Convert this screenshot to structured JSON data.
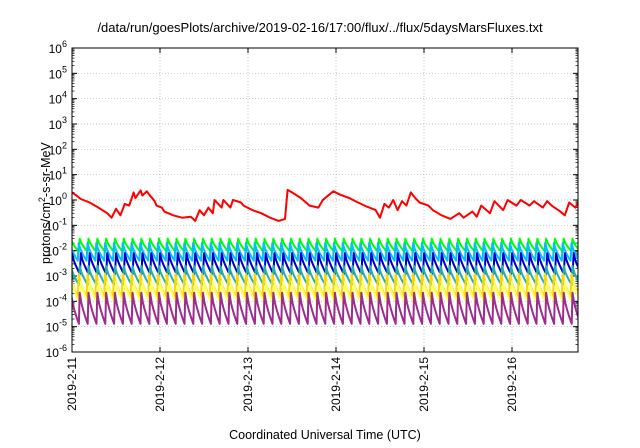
{
  "chart_data": {
    "type": "line",
    "title": "/data/run/goesPlots/archive/2019-02-16/17:00/flux/../flux/5daysMarsFluxes.txt",
    "xlabel": "Coordinated Universal Time (UTC)",
    "ylabel_main": "protons/cm",
    "ylabel_sup": "2",
    "ylabel_rest": "-s-sr-MeV",
    "yscale": "log",
    "ylim": [
      1e-06,
      1000000.0
    ],
    "grid": true,
    "x_ticks": [
      "2019-2-11",
      "2019-2-12",
      "2019-2-13",
      "2019-2-14",
      "2019-2-15",
      "2019-2-16"
    ],
    "y_ticks": [
      -6,
      -5,
      -4,
      -3,
      -2,
      -1,
      0,
      1,
      2,
      3,
      4,
      5,
      6
    ],
    "xlim_days": [
      0,
      5.75
    ],
    "series": [
      {
        "color": "#ff0000",
        "x_days": [
          0,
          0.05,
          0.1,
          0.2,
          0.3,
          0.4,
          0.45,
          0.5,
          0.55,
          0.6,
          0.65,
          0.7,
          0.72,
          0.78,
          0.8,
          0.85,
          0.88,
          0.94,
          0.96,
          1.02,
          1.05,
          1.15,
          1.25,
          1.35,
          1.4,
          1.45,
          1.5,
          1.55,
          1.6,
          1.62,
          1.7,
          1.72,
          1.8,
          1.83,
          1.92,
          1.95,
          2.05,
          2.15,
          2.25,
          2.35,
          2.42,
          2.45,
          2.5,
          2.6,
          2.7,
          2.8,
          2.85,
          2.92,
          2.97,
          3.05,
          3.15,
          3.25,
          3.35,
          3.45,
          3.5,
          3.55,
          3.6,
          3.65,
          3.7,
          3.75,
          3.8,
          3.85,
          3.9,
          3.95,
          4.05,
          4.1,
          4.2,
          4.3,
          4.4,
          4.45,
          4.55,
          4.6,
          4.65,
          4.75,
          4.8,
          4.9,
          4.95,
          5.05,
          5.1,
          5.2,
          5.25,
          5.35,
          5.4,
          5.45,
          5.55,
          5.6,
          5.65,
          5.72,
          5.75
        ],
        "values": [
          2.0,
          1.5,
          1.1,
          0.8,
          0.5,
          0.3,
          0.2,
          0.45,
          0.25,
          0.7,
          0.6,
          2.0,
          1.2,
          2.4,
          1.5,
          2.2,
          1.6,
          0.9,
          0.6,
          0.5,
          0.35,
          0.25,
          0.2,
          0.22,
          0.15,
          0.4,
          0.25,
          0.5,
          0.3,
          1.0,
          0.5,
          1.0,
          0.5,
          1.0,
          0.8,
          0.6,
          0.4,
          0.3,
          0.2,
          0.15,
          0.18,
          2.5,
          2.0,
          1.2,
          0.6,
          0.5,
          1.0,
          1.6,
          2.2,
          1.6,
          1.2,
          0.8,
          0.55,
          0.4,
          0.2,
          0.7,
          0.5,
          1.0,
          0.4,
          0.9,
          0.6,
          2.0,
          1.2,
          0.8,
          0.6,
          0.4,
          0.25,
          0.18,
          0.3,
          0.2,
          0.35,
          0.22,
          0.6,
          0.3,
          0.9,
          0.4,
          1.0,
          0.6,
          1.0,
          0.6,
          0.9,
          0.5,
          0.9,
          0.6,
          0.35,
          0.25,
          0.8,
          0.5,
          0.8
        ]
      },
      {
        "color": "#00ff00",
        "peak": 0.03,
        "trough": 0.009
      },
      {
        "color": "#00bfff",
        "peak": 0.02,
        "trough": 0.004
      },
      {
        "color": "#0000cd",
        "peak": 0.008,
        "trough": 0.0012
      },
      {
        "color": "#20b2aa",
        "peak": 0.0025,
        "trough": 0.00045
      },
      {
        "color": "#ffd700",
        "peak": 0.0012,
        "trough": 0.00015
      },
      {
        "color": "#ffff66",
        "peak": 0.0006,
        "trough": 8e-05
      },
      {
        "color": "#9b2d8f",
        "peak": 0.00022,
        "trough": 1.3e-05
      }
    ],
    "oscillation_period_days": 0.1
  }
}
